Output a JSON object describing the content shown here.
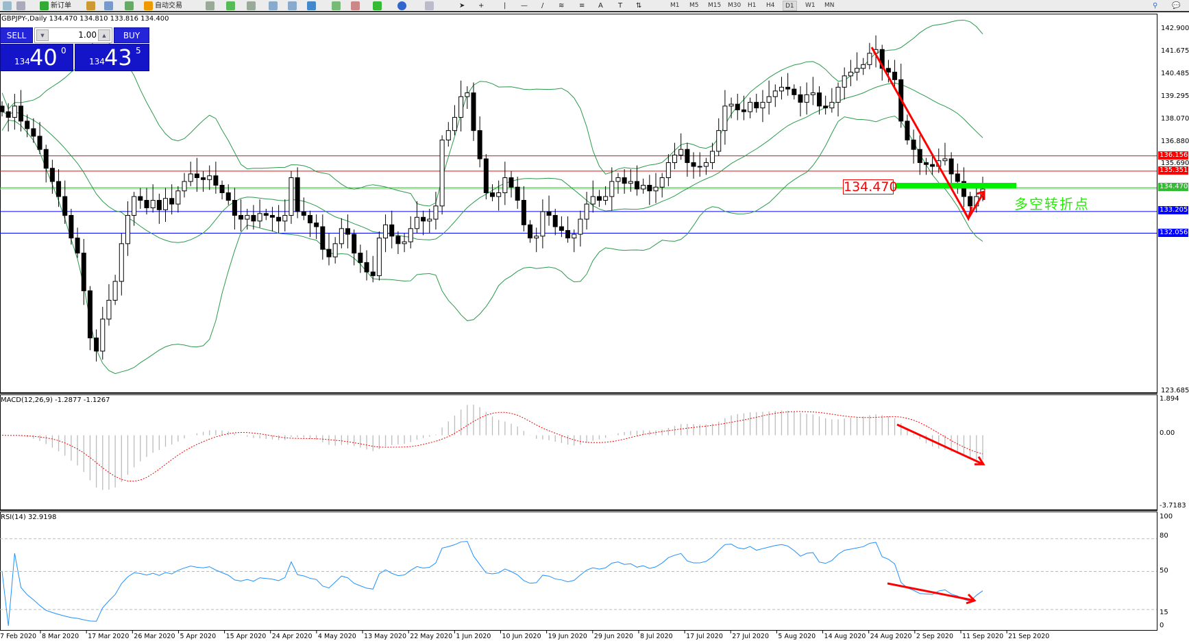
{
  "toolbar": {
    "new_order": "新订单",
    "auto_trading": "自动交易",
    "timeframes": [
      "M1",
      "M5",
      "M15",
      "M30",
      "H1",
      "H4",
      "D1",
      "W1",
      "MN"
    ],
    "active_timeframe": "D1"
  },
  "chart_title": "GBPJPY-,Daily  134.470 134.810 133.816 134.400",
  "trade_panel": {
    "sell": "SELL",
    "buy": "BUY",
    "lot": "1.00",
    "bid_small": "134",
    "bid_big": "40",
    "bid_tiny": "0",
    "ask_small": "134",
    "ask_big": "43",
    "ask_tiny": "5"
  },
  "price_axis": [
    "142.900",
    "141.675",
    "140.485",
    "139.295",
    "138.070",
    "136.880",
    "135.690",
    "123.685"
  ],
  "price_lines": [
    {
      "value": "136.156",
      "color": "#ff0000"
    },
    {
      "value": "135.351",
      "color": "#ff0000"
    },
    {
      "value": "134.470",
      "color": "#33bb33"
    },
    {
      "value": "133.205",
      "color": "#0000ff"
    },
    {
      "value": "132.056",
      "color": "#0000ff"
    }
  ],
  "annotation": {
    "price": "134.470",
    "text": "多空转折点",
    "bar_color": "#00ee00"
  },
  "macd": {
    "label": "MACD(12,26,9) -1.2877 -1.1267",
    "axis": [
      "1.894",
      "0.00",
      "-3.7183"
    ]
  },
  "rsi": {
    "label": "RSI(14) 32.9198",
    "axis": [
      "100",
      "80",
      "50",
      "15",
      "0"
    ]
  },
  "dates": [
    "7 Feb 2020",
    "8 Mar 2020",
    "17 Mar 2020",
    "26 Mar 2020",
    "5 Apr 2020",
    "15 Apr 2020",
    "24 Apr 2020",
    "4 May 2020",
    "13 May 2020",
    "22 May 2020",
    "1 Jun 2020",
    "10 Jun 2020",
    "19 Jun 2020",
    "29 Jun 2020",
    "8 Jul 2020",
    "17 Jul 2020",
    "27 Jul 2020",
    "5 Aug 2020",
    "14 Aug 2020",
    "24 Aug 2020",
    "2 Sep 2020",
    "11 Sep 2020",
    "21 Sep 2020"
  ],
  "chart_data": {
    "type": "candlestick",
    "symbol": "GBPJPY",
    "timeframe": "Daily",
    "ylim": [
      123.685,
      142.9
    ],
    "indicators": [
      "Bollinger Bands",
      "MACD(12,26,9)",
      "RSI(14)"
    ],
    "close": [
      138.5,
      138.2,
      138.8,
      138.0,
      137.6,
      137.2,
      136.5,
      135.5,
      134.8,
      134.0,
      133.0,
      131.8,
      131.0,
      129.0,
      126.5,
      125.8,
      127.5,
      128.5,
      129.5,
      131.5,
      133.0,
      134.0,
      133.8,
      133.4,
      133.8,
      133.3,
      133.9,
      133.6,
      134.3,
      134.8,
      135.2,
      135.0,
      134.9,
      135.1,
      134.6,
      134.2,
      133.8,
      133.0,
      132.8,
      133.0,
      132.7,
      133.1,
      133.0,
      132.9,
      132.7,
      133.0,
      135.0,
      133.2,
      133.0,
      132.6,
      132.4,
      131.2,
      130.8,
      131.5,
      132.3,
      132.0,
      131.0,
      130.5,
      130.0,
      129.8,
      131.8,
      132.5,
      131.9,
      131.5,
      131.6,
      132.3,
      132.9,
      132.7,
      132.8,
      133.5,
      137.0,
      137.5,
      138.2,
      139.3,
      139.5,
      137.5,
      136.0,
      134.2,
      134.0,
      134.2,
      135.0,
      134.5,
      133.8,
      132.5,
      131.8,
      131.9,
      133.2,
      133.0,
      132.4,
      132.2,
      131.8,
      132.0,
      132.8,
      133.6,
      134.0,
      133.8,
      134.0,
      134.8,
      135.0,
      134.7,
      134.8,
      134.4,
      134.6,
      134.3,
      134.5,
      135.0,
      135.8,
      136.2,
      136.5,
      135.8,
      135.6,
      135.6,
      135.8,
      136.4,
      137.5,
      138.8,
      138.9,
      138.6,
      138.5,
      139.0,
      138.7,
      139.0,
      139.3,
      139.6,
      139.8,
      139.7,
      139.4,
      139.0,
      139.4,
      139.5,
      138.8,
      138.7,
      139.0,
      139.8,
      140.4,
      140.6,
      140.8,
      141.0,
      141.6,
      141.8,
      140.8,
      140.6,
      140.2,
      138.0,
      137.0,
      136.5,
      135.8,
      135.7,
      135.6,
      135.9,
      136.0,
      135.2,
      134.8,
      134.0,
      133.5,
      134.0,
      134.4
    ]
  }
}
